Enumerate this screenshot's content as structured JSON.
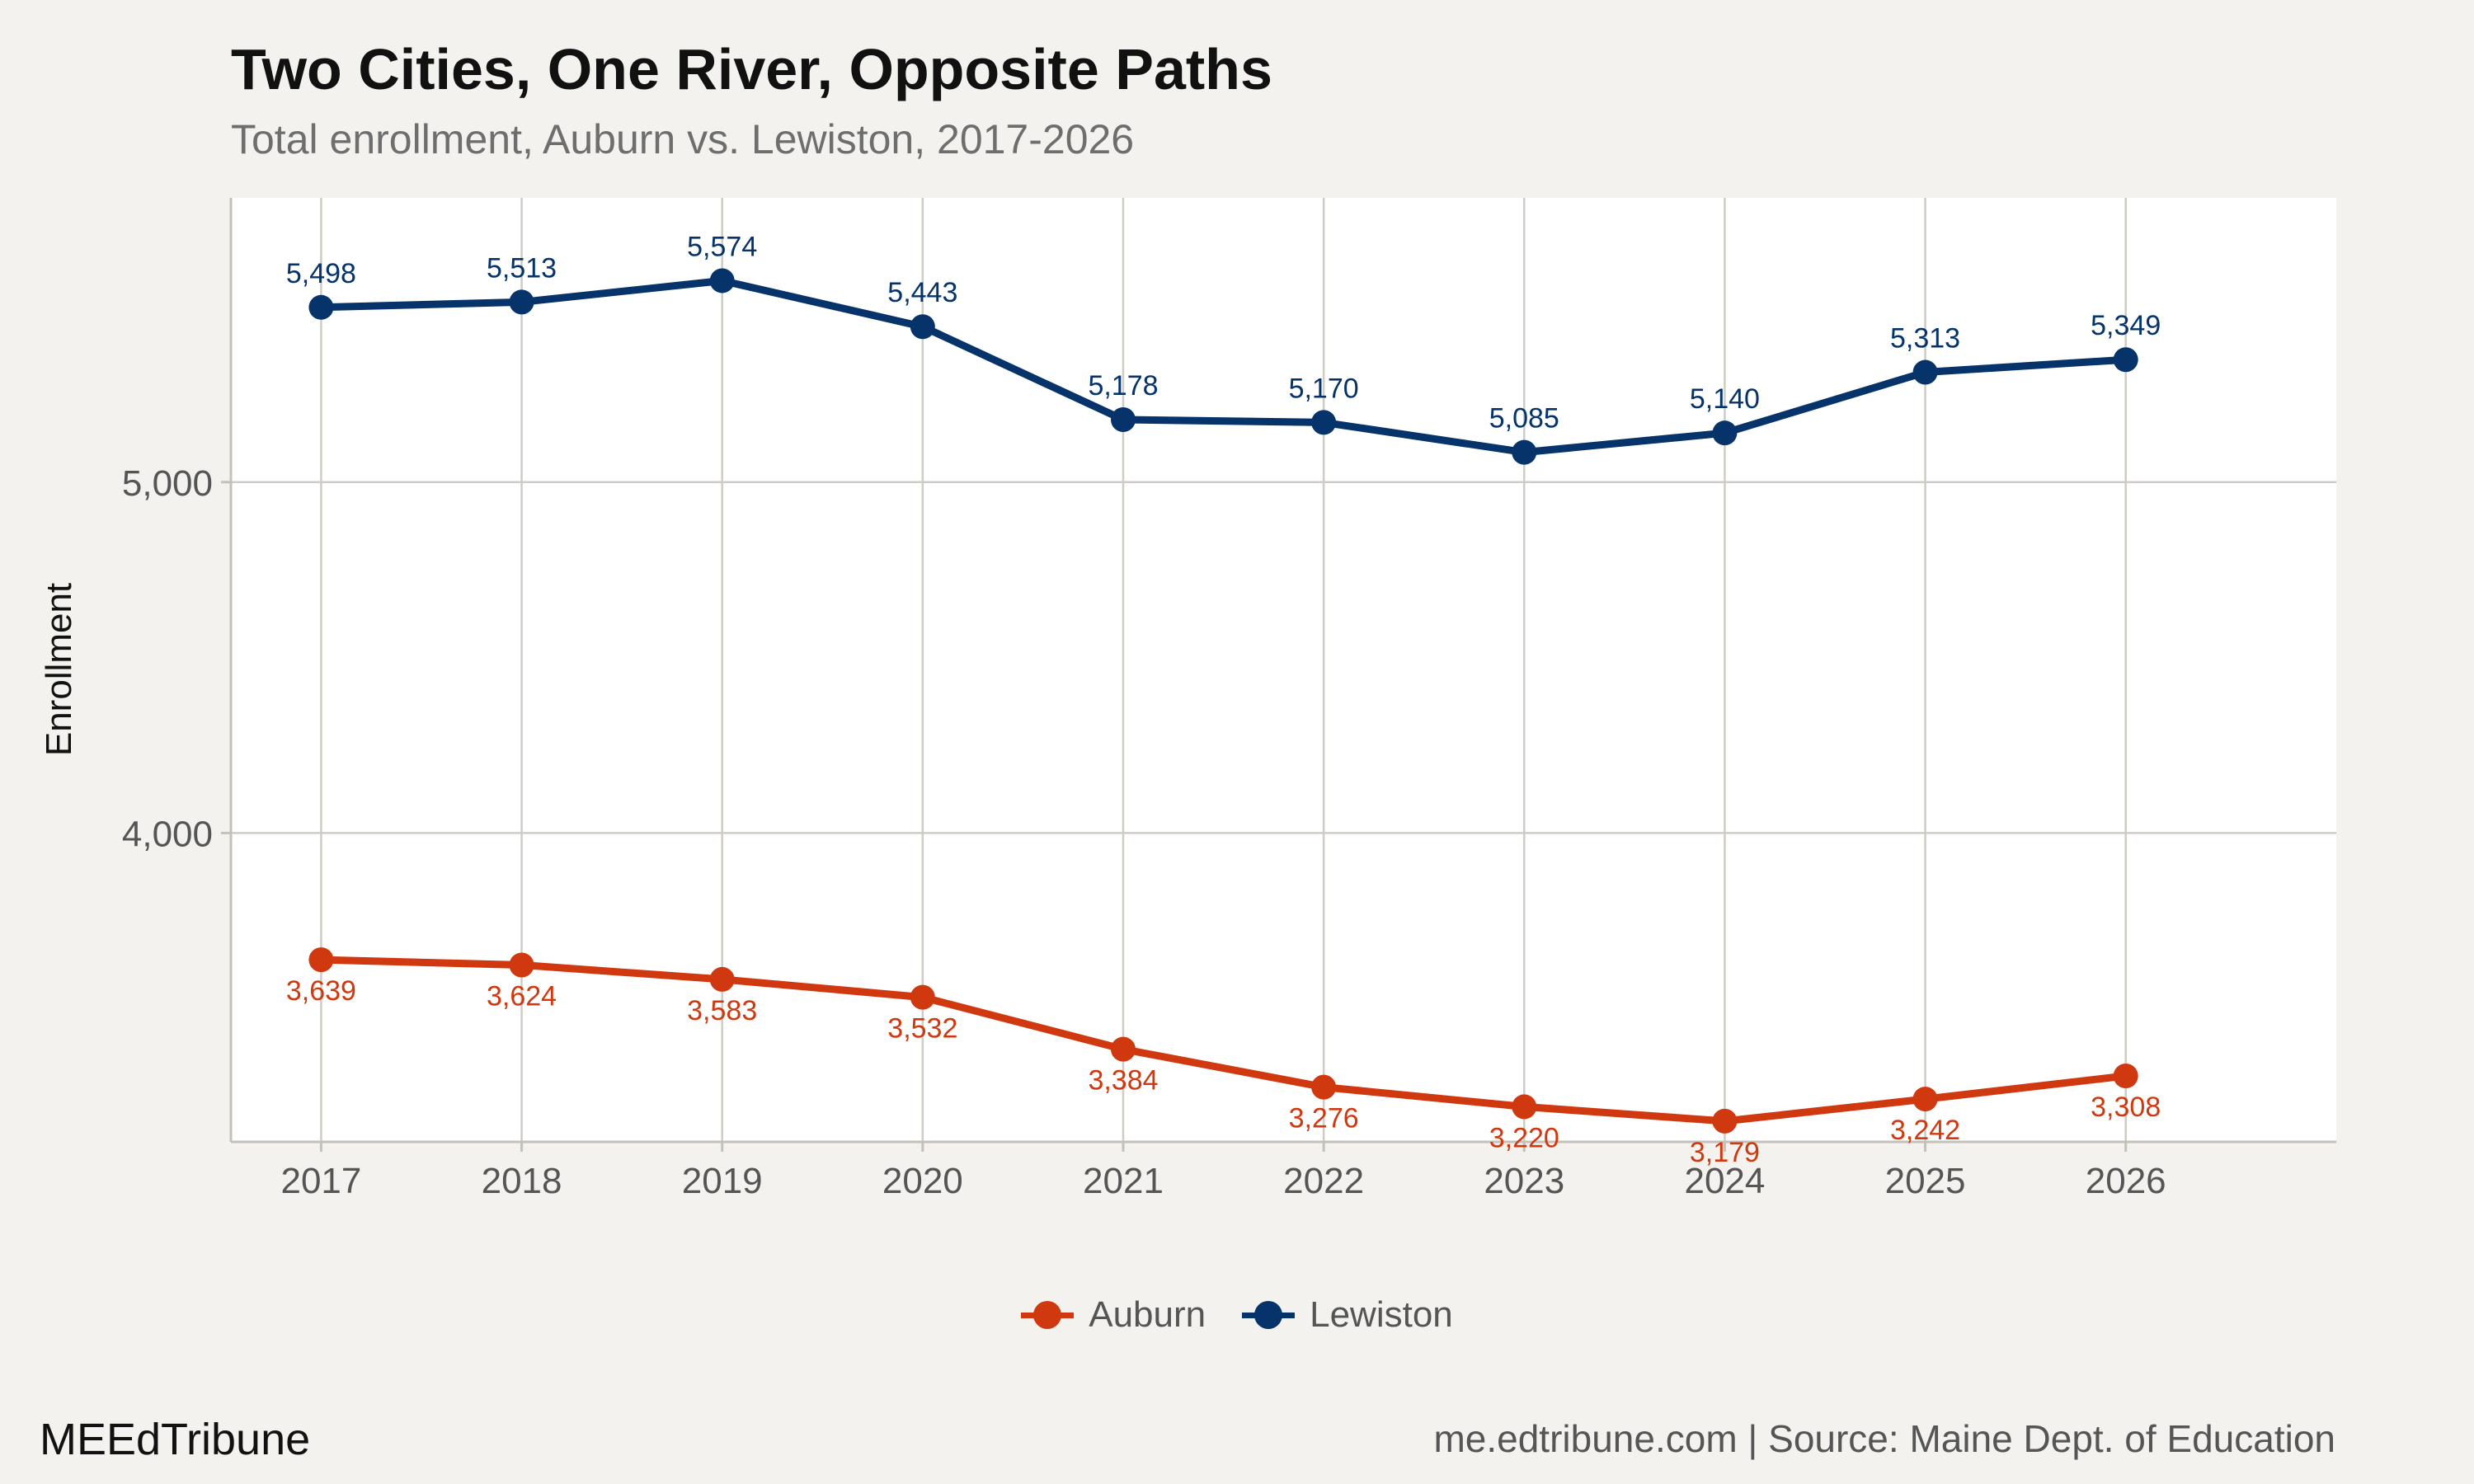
{
  "colors": {
    "background": "#f4f2ee",
    "panel": "#ffffff",
    "grid": "#cfcbc5",
    "auburn": "#d0390f",
    "lewiston": "#05336a"
  },
  "chart_data": {
    "type": "line",
    "title": "Two Cities, One River, Opposite Paths",
    "subtitle": "Total enrollment, Auburn vs. Lewiston, 2017-2026",
    "xlabel": "",
    "ylabel": "Enrollment",
    "x": [
      2017,
      2018,
      2019,
      2020,
      2021,
      2022,
      2023,
      2024,
      2025,
      2026
    ],
    "x_tick_labels": [
      "2017",
      "2018",
      "2019",
      "2020",
      "2021",
      "2022",
      "2023",
      "2024",
      "2025",
      "2026"
    ],
    "xlim": [
      2016.55,
      2027.05
    ],
    "ylim": [
      3120,
      5810
    ],
    "y_ticks": [
      4000,
      5000
    ],
    "y_tick_labels": [
      "4,000",
      "5,000"
    ],
    "grid": true,
    "legend_position": "bottom",
    "series": [
      {
        "name": "Auburn",
        "color": "#d0390f",
        "label_position": "below",
        "values": [
          3639,
          3624,
          3583,
          3532,
          3384,
          3276,
          3220,
          3179,
          3242,
          3308
        ],
        "labels": [
          "3,639",
          "3,624",
          "3,583",
          "3,532",
          "3,384",
          "3,276",
          "3,220",
          "3,179",
          "3,242",
          "3,308"
        ]
      },
      {
        "name": "Lewiston",
        "color": "#05336a",
        "label_position": "above",
        "values": [
          5498,
          5513,
          5574,
          5443,
          5178,
          5170,
          5085,
          5140,
          5313,
          5349
        ],
        "labels": [
          "5,498",
          "5,513",
          "5,574",
          "5,443",
          "5,178",
          "5,170",
          "5,085",
          "5,140",
          "5,313",
          "5,349"
        ]
      }
    ]
  },
  "footer": {
    "brand": "MEEdTribune",
    "source": "me.edtribune.com | Source: Maine Dept. of Education"
  }
}
